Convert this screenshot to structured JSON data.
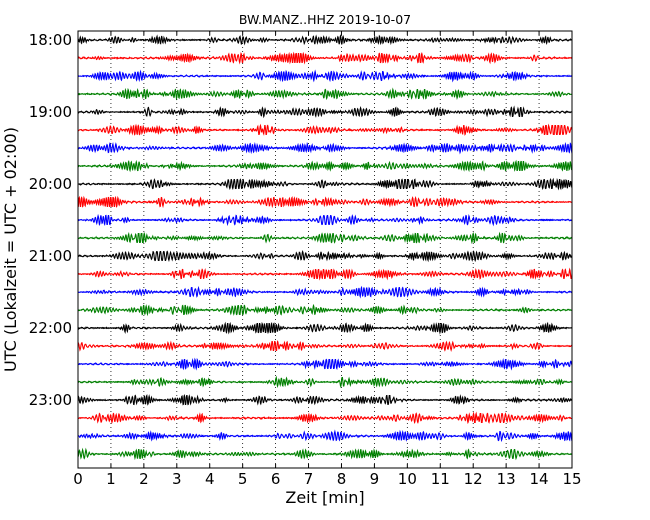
{
  "chart_data": {
    "type": "line",
    "title": "BW.MANZ..HHZ 2019-10-07",
    "xlabel": "Zeit  [min]",
    "ylabel": "UTC (Lokalzeit = UTC + 02:00)",
    "xlim": [
      0,
      15
    ],
    "x_ticks": [
      "0",
      "1",
      "2",
      "3",
      "4",
      "5",
      "6",
      "7",
      "8",
      "9",
      "10",
      "11",
      "12",
      "13",
      "14",
      "15"
    ],
    "y_ticks": [
      "18:00",
      "19:00",
      "20:00",
      "21:00",
      "22:00",
      "23:00"
    ],
    "grid": "vertical dotted",
    "trace_colors": [
      "#000000",
      "#ff0000",
      "#0000ff",
      "#008000"
    ],
    "rows": [
      {
        "start": "18:00"
      },
      {
        "start": "18:15"
      },
      {
        "start": "18:30"
      },
      {
        "start": "18:45"
      },
      {
        "start": "19:00"
      },
      {
        "start": "19:15"
      },
      {
        "start": "19:30"
      },
      {
        "start": "19:45"
      },
      {
        "start": "20:00"
      },
      {
        "start": "20:15"
      },
      {
        "start": "20:30"
      },
      {
        "start": "20:45"
      },
      {
        "start": "21:00"
      },
      {
        "start": "21:15"
      },
      {
        "start": "21:30"
      },
      {
        "start": "21:45"
      },
      {
        "start": "22:00"
      },
      {
        "start": "22:15"
      },
      {
        "start": "22:30"
      },
      {
        "start": "22:45"
      },
      {
        "start": "23:00"
      },
      {
        "start": "23:15"
      },
      {
        "start": "23:30"
      },
      {
        "start": "23:45"
      }
    ]
  }
}
